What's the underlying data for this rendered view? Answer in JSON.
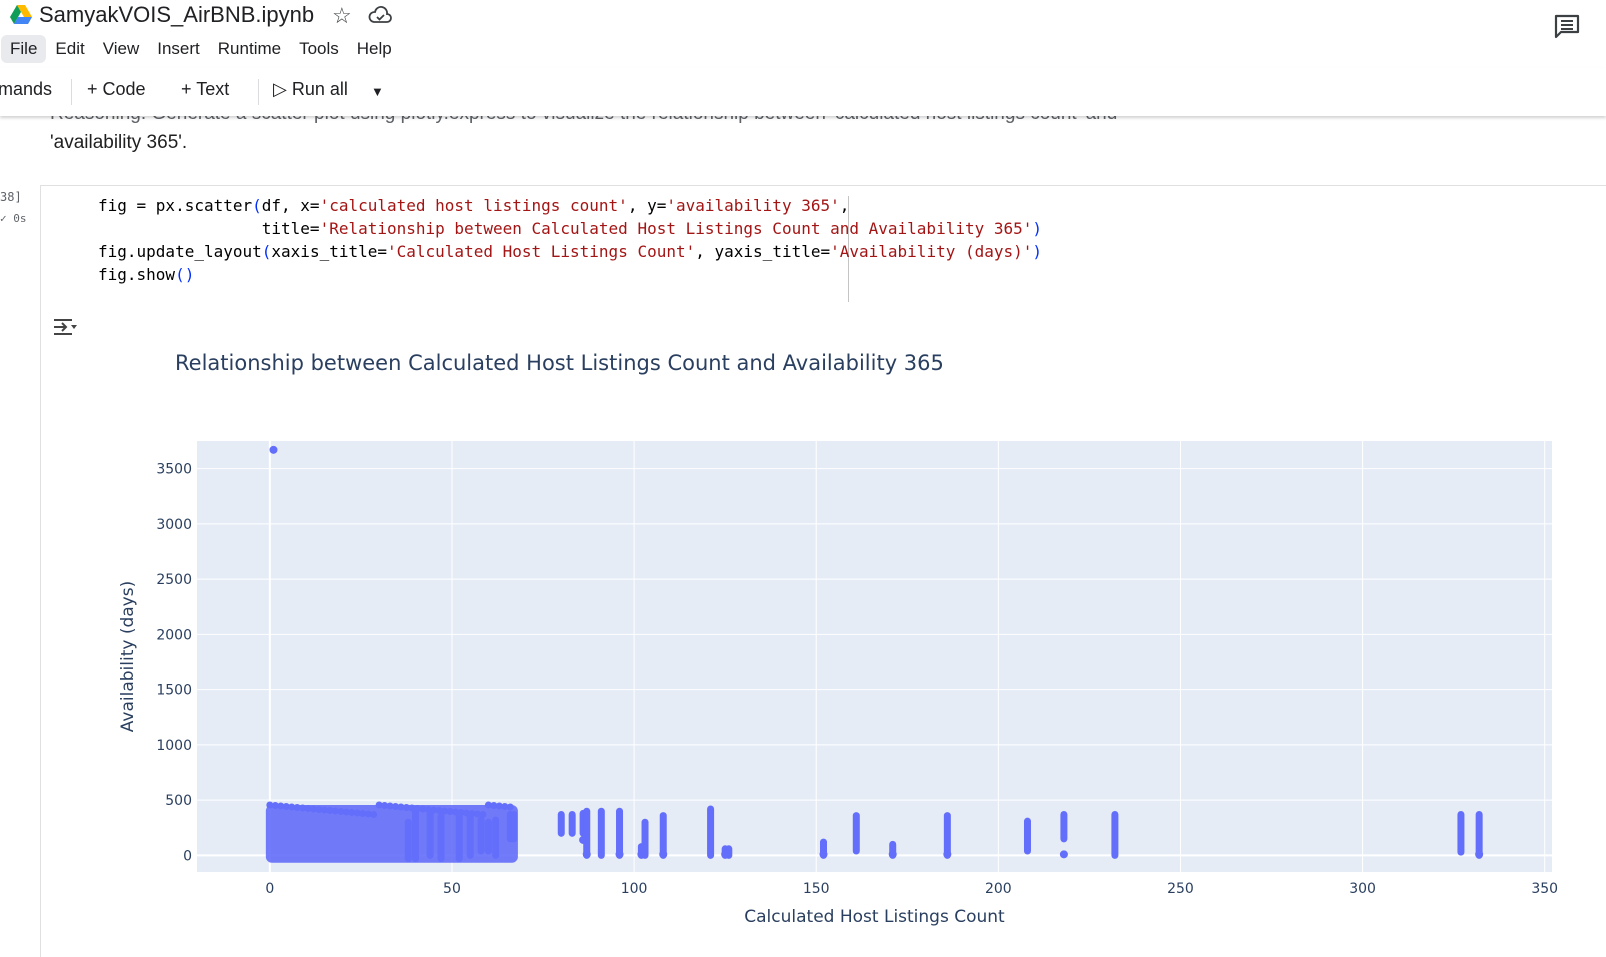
{
  "header": {
    "notebook_title": "SamyakVOIS_AirBNB.ipynb",
    "menu": [
      "File",
      "Edit",
      "View",
      "Insert",
      "Runtime",
      "Tools",
      "Help"
    ]
  },
  "toolbar": {
    "commands_label": "mands",
    "code_label": "+ Code",
    "text_label": "+ Text",
    "run_all_label": "Run all"
  },
  "text_cell": {
    "hidden_line": "Reasoning: Generate a scatter plot using plotly.express to visualize the relationship between 'calculated host listings count' and",
    "line2": "'availability 365'."
  },
  "code_cell": {
    "execution_count": "38]",
    "exec_time": "✓ 0s",
    "lines": [
      "fig = px.scatter(df, x='calculated host listings count', y='availability 365',",
      "                 title='Relationship between Calculated Host Listings Count and Availability 365')",
      "fig.update_layout(xaxis_title='Calculated Host Listings Count', yaxis_title='Availability (days)')",
      "fig.show()"
    ]
  },
  "chart_data": {
    "type": "scatter",
    "title": "Relationship between Calculated Host Listings Count and Availability 365",
    "xlabel": "Calculated Host Listings Count",
    "ylabel": "Availability (days)",
    "xlim": [
      -20,
      352
    ],
    "ylim": [
      -150,
      3750
    ],
    "xticks": [
      0,
      50,
      100,
      150,
      200,
      250,
      300,
      350
    ],
    "yticks": [
      0,
      500,
      1000,
      1500,
      2000,
      2500,
      3000,
      3500
    ],
    "grid": true,
    "marker_color": "#636efa",
    "plot_bg": "#e5ecf6",
    "points": [
      [
        1,
        3670
      ]
    ],
    "dense_region": {
      "x": [
        0,
        67
      ],
      "y": [
        -30,
        420
      ]
    },
    "columns": [
      {
        "x": 38,
        "y": [
          -30,
          300
        ]
      },
      {
        "x": 40,
        "y": [
          -30,
          400
        ]
      },
      {
        "x": 44,
        "y": [
          0,
          380
        ]
      },
      {
        "x": 47,
        "y": [
          -30,
          350
        ]
      },
      {
        "x": 52,
        "y": [
          -30,
          380
        ]
      },
      {
        "x": 55,
        "y": [
          0,
          360
        ]
      },
      {
        "x": 58,
        "y": [
          40,
          320
        ]
      },
      {
        "x": 60,
        "y": [
          40,
          300
        ]
      },
      {
        "x": 62,
        "y": [
          0,
          320
        ]
      },
      {
        "x": 66,
        "y": [
          150,
          370
        ]
      },
      {
        "x": 67,
        "y": [
          150,
          370
        ]
      },
      {
        "x": 80,
        "y": [
          200,
          370
        ]
      },
      {
        "x": 83,
        "y": [
          200,
          370
        ]
      },
      {
        "x": 86,
        "y": [
          200,
          380
        ]
      },
      {
        "x": 87,
        "y": [
          0,
          400
        ]
      },
      {
        "x": 91,
        "y": [
          0,
          400
        ]
      },
      {
        "x": 96,
        "y": [
          0,
          400
        ]
      },
      {
        "x": 102,
        "y": [
          0,
          80
        ]
      },
      {
        "x": 103,
        "y": [
          0,
          300
        ]
      },
      {
        "x": 108,
        "y": [
          0,
          360
        ]
      },
      {
        "x": 121,
        "y": [
          0,
          420
        ]
      },
      {
        "x": 125,
        "y": [
          0,
          60
        ]
      },
      {
        "x": 126,
        "y": [
          0,
          60
        ]
      },
      {
        "x": 152,
        "y": [
          0,
          120
        ]
      },
      {
        "x": 161,
        "y": [
          40,
          360
        ]
      },
      {
        "x": 171,
        "y": [
          0,
          100
        ]
      },
      {
        "x": 186,
        "y": [
          0,
          360
        ]
      },
      {
        "x": 208,
        "y": [
          40,
          310
        ]
      },
      {
        "x": 218,
        "y": [
          150,
          370
        ]
      },
      {
        "x": 232,
        "y": [
          0,
          370
        ]
      },
      {
        "x": 327,
        "y": [
          30,
          370
        ]
      },
      {
        "x": 332,
        "y": [
          0,
          370
        ]
      }
    ],
    "extra_points": [
      [
        86,
        140
      ],
      [
        218,
        10
      ],
      [
        186,
        10
      ],
      [
        171,
        10
      ],
      [
        108,
        10
      ],
      [
        96,
        10
      ],
      [
        87,
        10
      ],
      [
        102,
        10
      ],
      [
        125,
        10
      ],
      [
        152,
        10
      ],
      [
        332,
        10
      ]
    ]
  }
}
